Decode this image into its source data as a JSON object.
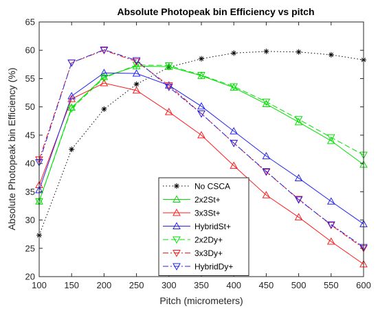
{
  "chart_data": {
    "type": "line",
    "title": "Absolute Photopeak bin Efficiency vs pitch",
    "xlabel": "Pitch (micrometers)",
    "ylabel": "Absolute Photopeak bin Efficiency (%)",
    "xlim": [
      100,
      600
    ],
    "ylim": [
      20,
      65
    ],
    "xticks": [
      100,
      150,
      200,
      250,
      300,
      350,
      400,
      450,
      500,
      550,
      600
    ],
    "yticks": [
      20,
      25,
      30,
      35,
      40,
      45,
      50,
      55,
      60,
      65
    ],
    "x": [
      100,
      150,
      200,
      250,
      300,
      350,
      400,
      450,
      500,
      550,
      600
    ],
    "grid": false,
    "legend_position": "bottom-left",
    "series": [
      {
        "name": "No CSCA",
        "color": "#000000",
        "dash": "1.5 3",
        "marker": "star",
        "values": [
          27.3,
          42.5,
          49.6,
          54.0,
          57.0,
          58.5,
          59.5,
          59.8,
          59.7,
          59.2,
          58.3
        ]
      },
      {
        "name": "2x2St+",
        "color": "#00e000",
        "dash": "",
        "marker": "triangle-up",
        "values": [
          33.3,
          49.9,
          55.3,
          57.2,
          57.1,
          55.5,
          53.4,
          50.5,
          47.3,
          44.0,
          39.8
        ]
      },
      {
        "name": "3x3St+",
        "color": "#ff1a1a",
        "dash": "",
        "marker": "triangle-up",
        "values": [
          36.2,
          51.4,
          54.2,
          52.9,
          49.1,
          45.0,
          39.6,
          34.4,
          30.5,
          26.2,
          22.2
        ]
      },
      {
        "name": "HybridSt+",
        "color": "#2222ee",
        "dash": "",
        "marker": "triangle-up",
        "values": [
          35.3,
          51.9,
          56.0,
          55.9,
          53.8,
          50.1,
          45.7,
          41.3,
          37.4,
          33.3,
          29.3
        ]
      },
      {
        "name": "2x2Dy+",
        "color": "#00e000",
        "dash": "8 4",
        "marker": "triangle-down",
        "values": [
          33.3,
          49.7,
          55.1,
          57.4,
          57.3,
          55.6,
          53.6,
          50.9,
          47.8,
          44.6,
          41.5
        ]
      },
      {
        "name": "3x3Dy+",
        "color": "#ff1a1a",
        "dash": "8 3 2 3",
        "marker": "triangle-down",
        "values": [
          40.7,
          57.8,
          60.0,
          58.0,
          53.8,
          48.8,
          43.6,
          38.5,
          33.7,
          29.1,
          25.0
        ]
      },
      {
        "name": "HybridDy+",
        "color": "#2222ee",
        "dash": "8 3 2 3",
        "marker": "triangle-down",
        "values": [
          40.2,
          57.8,
          60.1,
          58.2,
          53.5,
          48.8,
          43.6,
          38.6,
          33.6,
          29.2,
          25.2
        ]
      }
    ]
  }
}
